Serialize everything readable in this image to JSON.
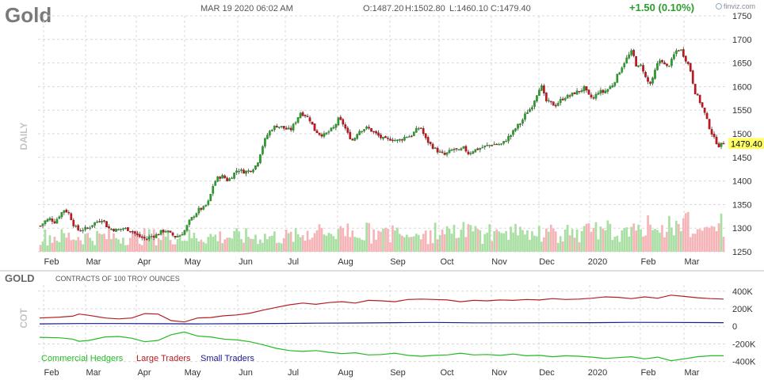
{
  "header": {
    "symbol": "Gold",
    "datetime": "MAR 19 2020 06:02 AM",
    "open": "O:1487.20",
    "high": "H:1502.80",
    "low": "L:1460.10",
    "close": "C:1479.40",
    "change": "+1.50 (0.10%)",
    "brand": "finviz.com"
  },
  "colors": {
    "up": "#2a9d2a",
    "down": "#c0161e",
    "vol_up": "#a9dfa3",
    "vol_down": "#f5b5b8",
    "grid": "#d8d8d8",
    "last_price_bg": "#ffff66",
    "commercial": "#22bb22",
    "large": "#b51e23",
    "small": "#1a1a8c"
  },
  "chart_data": [
    {
      "type": "candlestick",
      "title": "Gold",
      "ylabel": "DAILY",
      "period_label": "DAILY",
      "ylim": [
        1250,
        1750
      ],
      "y_ticks": [
        1250,
        1300,
        1350,
        1400,
        1450,
        1500,
        1550,
        1600,
        1650,
        1700,
        1750
      ],
      "x_ticks": [
        "Feb",
        "Mar",
        "Apr",
        "May",
        "Jun",
        "Jul",
        "Aug",
        "Sep",
        "Oct",
        "Nov",
        "Dec",
        "2020",
        "Feb",
        "Mar"
      ],
      "last_price": 1479.4,
      "last_price_label": "1479.40",
      "close_path": [
        [
          1,
          1305
        ],
        [
          2,
          1315
        ],
        [
          3,
          1320
        ],
        [
          4,
          1313
        ],
        [
          5,
          1328
        ],
        [
          6,
          1340
        ],
        [
          7,
          1330
        ],
        [
          8,
          1305
        ],
        [
          9,
          1295
        ],
        [
          10,
          1298
        ],
        [
          11,
          1300
        ],
        [
          12,
          1310
        ],
        [
          13,
          1315
        ],
        [
          14,
          1320
        ],
        [
          15,
          1300
        ],
        [
          16,
          1298
        ],
        [
          17,
          1295
        ],
        [
          18,
          1300
        ],
        [
          19,
          1298
        ],
        [
          20,
          1295
        ],
        [
          21,
          1285
        ],
        [
          22,
          1280
        ],
        [
          23,
          1277
        ],
        [
          24,
          1283
        ],
        [
          25,
          1285
        ],
        [
          26,
          1292
        ],
        [
          27,
          1295
        ],
        [
          28,
          1288
        ],
        [
          29,
          1282
        ],
        [
          30,
          1285
        ],
        [
          31,
          1295
        ],
        [
          32,
          1315
        ],
        [
          33,
          1328
        ],
        [
          34,
          1340
        ],
        [
          35,
          1343
        ],
        [
          36,
          1357
        ],
        [
          37,
          1395
        ],
        [
          38,
          1408
        ],
        [
          39,
          1410
        ],
        [
          40,
          1400
        ],
        [
          41,
          1413
        ],
        [
          42,
          1425
        ],
        [
          43,
          1420
        ],
        [
          44,
          1420
        ],
        [
          45,
          1425
        ],
        [
          46,
          1435
        ],
        [
          47,
          1470
        ],
        [
          48,
          1495
        ],
        [
          49,
          1510
        ],
        [
          50,
          1517
        ],
        [
          51,
          1515
        ],
        [
          52,
          1510
        ],
        [
          53,
          1508
        ],
        [
          54,
          1525
        ],
        [
          55,
          1545
        ],
        [
          56,
          1540
        ],
        [
          57,
          1530
        ],
        [
          58,
          1508
        ],
        [
          59,
          1500
        ],
        [
          60,
          1497
        ],
        [
          61,
          1505
        ],
        [
          62,
          1513
        ],
        [
          63,
          1532
        ],
        [
          64,
          1520
        ],
        [
          65,
          1497
        ],
        [
          66,
          1485
        ],
        [
          67,
          1505
        ],
        [
          68,
          1510
        ],
        [
          69,
          1513
        ],
        [
          70,
          1505
        ],
        [
          71,
          1498
        ],
        [
          72,
          1490
        ],
        [
          73,
          1487
        ],
        [
          74,
          1490
        ],
        [
          75,
          1485
        ],
        [
          76,
          1488
        ],
        [
          77,
          1495
        ],
        [
          78,
          1495
        ],
        [
          79,
          1507
        ],
        [
          80,
          1515
        ],
        [
          81,
          1490
        ],
        [
          82,
          1478
        ],
        [
          83,
          1468
        ],
        [
          84,
          1460
        ],
        [
          85,
          1455
        ],
        [
          86,
          1462
        ],
        [
          87,
          1468
        ],
        [
          88,
          1463
        ],
        [
          89,
          1470
        ],
        [
          90,
          1458
        ],
        [
          91,
          1465
        ],
        [
          92,
          1468
        ],
        [
          93,
          1472
        ],
        [
          94,
          1475
        ],
        [
          95,
          1478
        ],
        [
          96,
          1478
        ],
        [
          97,
          1478
        ],
        [
          98,
          1490
        ],
        [
          99,
          1500
        ],
        [
          100,
          1515
        ],
        [
          101,
          1525
        ],
        [
          102,
          1545
        ],
        [
          103,
          1555
        ],
        [
          104,
          1580
        ],
        [
          105,
          1605
        ],
        [
          106,
          1570
        ],
        [
          107,
          1565
        ],
        [
          108,
          1560
        ],
        [
          109,
          1570
        ],
        [
          110,
          1578
        ],
        [
          111,
          1580
        ],
        [
          112,
          1587
        ],
        [
          113,
          1590
        ],
        [
          114,
          1597
        ],
        [
          115,
          1580
        ],
        [
          116,
          1575
        ],
        [
          117,
          1590
        ],
        [
          118,
          1588
        ],
        [
          119,
          1595
        ],
        [
          120,
          1605
        ],
        [
          121,
          1625
        ],
        [
          122,
          1645
        ],
        [
          123,
          1662
        ],
        [
          124,
          1675
        ],
        [
          125,
          1640
        ],
        [
          126,
          1645
        ],
        [
          127,
          1612
        ],
        [
          128,
          1605
        ],
        [
          129,
          1642
        ],
        [
          130,
          1660
        ],
        [
          131,
          1640
        ],
        [
          132,
          1650
        ],
        [
          133,
          1675
        ],
        [
          134,
          1680
        ],
        [
          135,
          1660
        ],
        [
          136,
          1640
        ],
        [
          137,
          1590
        ],
        [
          138,
          1570
        ],
        [
          139,
          1545
        ],
        [
          140,
          1515
        ],
        [
          141,
          1490
        ],
        [
          142,
          1475
        ],
        [
          143,
          1479
        ]
      ]
    },
    {
      "type": "line",
      "title": "GOLD",
      "subtitle": "CONTRACTS OF 100 TROY OUNCES",
      "ylabel": "COT",
      "ylim": [
        -430000,
        470000
      ],
      "y_ticks": [
        "400K",
        "200K",
        "0",
        "-200K",
        "-400K"
      ],
      "y_tick_values": [
        400000,
        200000,
        0,
        -200000,
        -400000
      ],
      "x_ticks": [
        "Feb",
        "Mar",
        "Apr",
        "May",
        "Jun",
        "Jul",
        "Aug",
        "Sep",
        "Oct",
        "Nov",
        "Dec",
        "2020",
        "Feb",
        "Mar"
      ],
      "legend": [
        "Commercial Hedgers",
        "Large Traders",
        "Small Traders"
      ],
      "legend_placement": "bottom-left",
      "series": [
        {
          "name": "Large Traders",
          "values": [
            [
              0,
              95000
            ],
            [
              6,
              105000
            ],
            [
              10,
              115000
            ],
            [
              12,
              140000
            ],
            [
              15,
              125000
            ],
            [
              20,
              95000
            ],
            [
              24,
              85000
            ],
            [
              28,
              95000
            ],
            [
              32,
              145000
            ],
            [
              36,
              140000
            ],
            [
              40,
              65000
            ],
            [
              44,
              50000
            ],
            [
              48,
              95000
            ],
            [
              52,
              100000
            ],
            [
              56,
              120000
            ],
            [
              60,
              130000
            ],
            [
              64,
              150000
            ],
            [
              68,
              185000
            ],
            [
              72,
              215000
            ],
            [
              76,
              245000
            ],
            [
              80,
              265000
            ],
            [
              84,
              250000
            ],
            [
              88,
              270000
            ],
            [
              92,
              280000
            ],
            [
              96,
              265000
            ],
            [
              100,
              295000
            ],
            [
              104,
              290000
            ],
            [
              108,
              280000
            ],
            [
              112,
              305000
            ],
            [
              116,
              310000
            ],
            [
              120,
              305000
            ],
            [
              124,
              300000
            ],
            [
              128,
              280000
            ],
            [
              132,
              295000
            ],
            [
              136,
              290000
            ],
            [
              140,
              300000
            ],
            [
              144,
              295000
            ],
            [
              148,
              305000
            ],
            [
              152,
              300000
            ],
            [
              156,
              315000
            ],
            [
              160,
              305000
            ],
            [
              164,
              310000
            ],
            [
              168,
              320000
            ],
            [
              172,
              335000
            ],
            [
              176,
              330000
            ],
            [
              180,
              315000
            ],
            [
              184,
              335000
            ],
            [
              188,
              320000
            ],
            [
              192,
              355000
            ],
            [
              196,
              340000
            ],
            [
              200,
              325000
            ],
            [
              204,
              315000
            ],
            [
              208,
              310000
            ]
          ]
        },
        {
          "name": "Small Traders",
          "values": [
            [
              0,
              28000
            ],
            [
              12,
              32000
            ],
            [
              24,
              32000
            ],
            [
              36,
              30000
            ],
            [
              48,
              28000
            ],
            [
              60,
              30000
            ],
            [
              72,
              33000
            ],
            [
              84,
              36000
            ],
            [
              96,
              38000
            ],
            [
              108,
              42000
            ],
            [
              120,
              44000
            ],
            [
              132,
              40000
            ],
            [
              144,
              40000
            ],
            [
              156,
              41000
            ],
            [
              168,
              42000
            ],
            [
              180,
              45000
            ],
            [
              192,
              44000
            ],
            [
              208,
              42000
            ]
          ]
        },
        {
          "name": "Commercial Hedgers",
          "values": [
            [
              0,
              -125000
            ],
            [
              6,
              -130000
            ],
            [
              10,
              -145000
            ],
            [
              12,
              -170000
            ],
            [
              15,
              -160000
            ],
            [
              20,
              -120000
            ],
            [
              24,
              -115000
            ],
            [
              28,
              -135000
            ],
            [
              32,
              -175000
            ],
            [
              36,
              -160000
            ],
            [
              40,
              -95000
            ],
            [
              44,
              -65000
            ],
            [
              48,
              -110000
            ],
            [
              52,
              -120000
            ],
            [
              56,
              -145000
            ],
            [
              60,
              -155000
            ],
            [
              64,
              -175000
            ],
            [
              68,
              -210000
            ],
            [
              72,
              -250000
            ],
            [
              76,
              -275000
            ],
            [
              80,
              -285000
            ],
            [
              84,
              -275000
            ],
            [
              88,
              -295000
            ],
            [
              92,
              -310000
            ],
            [
              96,
              -300000
            ],
            [
              100,
              -325000
            ],
            [
              104,
              -320000
            ],
            [
              108,
              -305000
            ],
            [
              112,
              -330000
            ],
            [
              116,
              -340000
            ],
            [
              120,
              -330000
            ],
            [
              124,
              -325000
            ],
            [
              128,
              -305000
            ],
            [
              132,
              -325000
            ],
            [
              136,
              -320000
            ],
            [
              140,
              -330000
            ],
            [
              144,
              -315000
            ],
            [
              148,
              -335000
            ],
            [
              152,
              -330000
            ],
            [
              156,
              -345000
            ],
            [
              160,
              -335000
            ],
            [
              164,
              -340000
            ],
            [
              168,
              -350000
            ],
            [
              172,
              -365000
            ],
            [
              176,
              -355000
            ],
            [
              180,
              -345000
            ],
            [
              184,
              -370000
            ],
            [
              188,
              -350000
            ],
            [
              192,
              -390000
            ],
            [
              196,
              -370000
            ],
            [
              200,
              -345000
            ],
            [
              204,
              -335000
            ],
            [
              208,
              -335000
            ]
          ]
        }
      ]
    }
  ]
}
